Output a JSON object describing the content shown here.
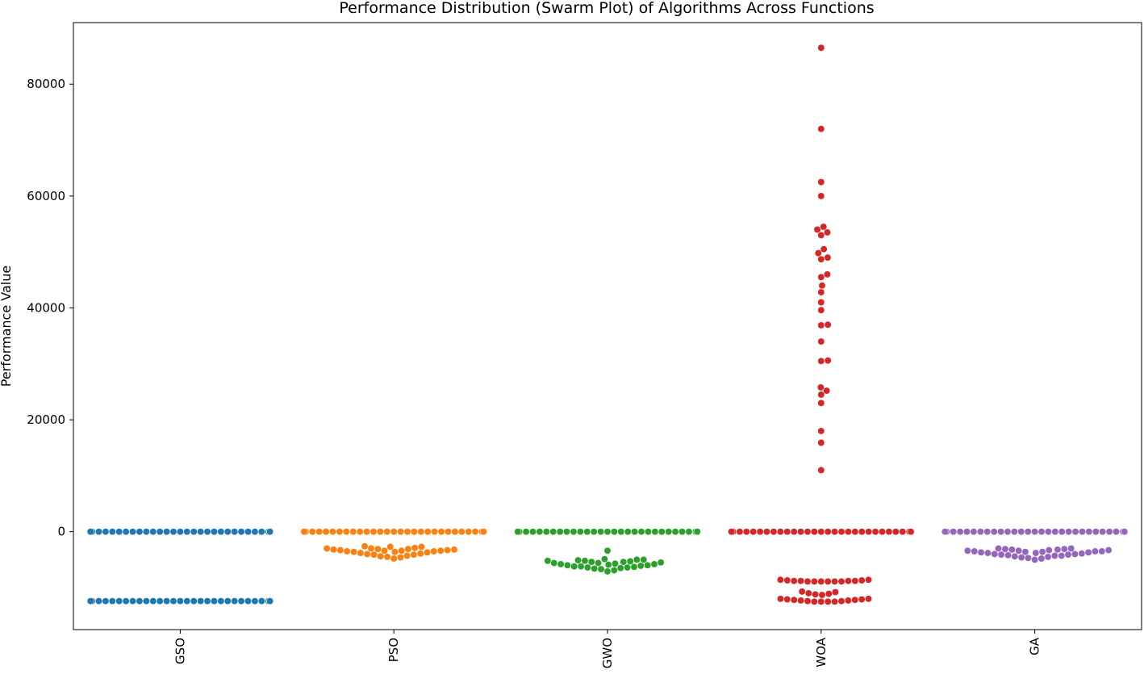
{
  "chart_data": {
    "type": "scatter",
    "subtype": "swarm",
    "title": "Performance Distribution (Swarm Plot) of Algorithms Across Functions",
    "xlabel": "",
    "ylabel": "Performance Value",
    "categories": [
      "GSO",
      "PSO",
      "GWO",
      "WOA",
      "GA"
    ],
    "ylim": [
      -17500,
      91000
    ],
    "yticks": [
      0,
      20000,
      40000,
      60000,
      80000
    ],
    "ytick_labels": [
      "0",
      "20000",
      "40000",
      "60000",
      "80000"
    ],
    "xtick_rotation": 90,
    "grid": false,
    "legend": "none",
    "colors": [
      "#1f77b4",
      "#ff7f0e",
      "#2ca02c",
      "#d62728",
      "#9467bd"
    ],
    "series": [
      {
        "values": [
          0,
          0,
          0,
          0,
          0,
          0,
          0,
          0,
          0,
          0,
          0,
          0,
          0,
          0,
          0,
          0,
          0,
          0,
          0,
          0,
          0,
          0,
          0,
          0,
          0,
          0,
          0,
          0,
          0,
          0,
          0,
          0,
          0,
          0,
          0,
          0,
          0,
          0,
          0,
          0,
          0,
          0,
          0,
          0,
          0,
          0,
          0,
          0,
          0,
          0,
          0,
          0,
          0,
          0,
          0,
          0,
          0,
          0,
          0,
          0,
          -12400,
          -12400,
          -12400,
          -12400,
          -12400,
          -12400,
          -12400,
          -12400,
          -12400,
          -12400,
          -12400,
          -12400,
          -12400,
          -12400,
          -12400,
          -12400,
          -12400,
          -12400,
          -12400,
          -12400,
          -12400,
          -12400,
          -12400,
          -12400,
          -12400,
          -12400,
          -12400,
          -12400,
          -12400,
          -12400,
          -12400,
          -12400,
          -12400,
          -12400,
          -12400,
          -12400,
          -12400,
          -12400,
          -12400,
          -12400
        ]
      },
      {
        "values": [
          0,
          0,
          0,
          0,
          0,
          0,
          0,
          0,
          0,
          0,
          0,
          0,
          0,
          0,
          0,
          0,
          0,
          0,
          0,
          0,
          0,
          0,
          0,
          0,
          0,
          0,
          0,
          0,
          0,
          0,
          0,
          0,
          0,
          0,
          0,
          0,
          0,
          0,
          0,
          0,
          0,
          0,
          0,
          0,
          0,
          0,
          0,
          0,
          0,
          0,
          0,
          0,
          0,
          0,
          0,
          0,
          0,
          0,
          0,
          0,
          0,
          0,
          0,
          0,
          0,
          0,
          0,
          0,
          0,
          0,
          -2900,
          -3000,
          -3100,
          -3200,
          -3300,
          -3400,
          -3400,
          -3500,
          -3500,
          -3600,
          -3700,
          -3800,
          -3900,
          -4000,
          -4100,
          -4300,
          -4500,
          -4800,
          -3400,
          -3200,
          -3100,
          -3000,
          -2700,
          -2600,
          -2700,
          -3300,
          -3600,
          -4100,
          -4400,
          -4600
        ]
      },
      {
        "values": [
          0,
          0,
          0,
          0,
          0,
          0,
          0,
          0,
          0,
          0,
          0,
          0,
          0,
          0,
          0,
          0,
          0,
          0,
          0,
          0,
          0,
          0,
          0,
          0,
          0,
          0,
          0,
          0,
          0,
          0,
          0,
          0,
          0,
          0,
          0,
          0,
          0,
          0,
          0,
          0,
          0,
          0,
          0,
          0,
          0,
          0,
          0,
          0,
          0,
          0,
          0,
          0,
          0,
          0,
          0,
          0,
          0,
          0,
          0,
          0,
          0,
          0,
          0,
          0,
          0,
          0,
          0,
          0,
          0,
          0,
          -3400,
          -4900,
          -5000,
          -5100,
          -5200,
          -5300,
          -5400,
          -5500,
          -5600,
          -5700,
          -5800,
          -5900,
          -6000,
          -6100,
          -6200,
          -6300,
          -6400,
          -6500,
          -6700,
          -6900,
          -7100,
          -5200,
          -5600,
          -6000,
          -6400,
          -5400,
          -5800,
          -6200,
          -6600,
          -5000
        ]
      },
      {
        "values": [
          86500,
          72000,
          62500,
          60000,
          54500,
          54000,
          53500,
          53000,
          50500,
          49800,
          49000,
          48700,
          46000,
          45500,
          44000,
          42800,
          41000,
          39600,
          37000,
          36900,
          34000,
          30600,
          30500,
          25800,
          25200,
          24500,
          23000,
          18000,
          15900,
          11000,
          0,
          0,
          0,
          0,
          0,
          0,
          0,
          0,
          0,
          0,
          0,
          0,
          0,
          0,
          0,
          0,
          0,
          0,
          0,
          0,
          0,
          0,
          0,
          0,
          0,
          0,
          0,
          0,
          0,
          0,
          0,
          0,
          0,
          0,
          0,
          0,
          0,
          0,
          0,
          0,
          0,
          0,
          0,
          0,
          0,
          0,
          0,
          0,
          0,
          0,
          0,
          0,
          0,
          0,
          0,
          0,
          0,
          0,
          0,
          0,
          -8600,
          -8700,
          -8800,
          -8800,
          -8900,
          -8900,
          -8900,
          -8900,
          -8900,
          -8900,
          -8800,
          -8800,
          -8700,
          -8600,
          -10700,
          -11000,
          -11200,
          -11300,
          -11100,
          -10800,
          -12000,
          -12100,
          -12200,
          -12300,
          -12400,
          -12500,
          -12500,
          -12500,
          -12500,
          -12400,
          -12300,
          -12200,
          -12100,
          -12000
        ]
      },
      {
        "values": [
          0,
          0,
          0,
          0,
          0,
          0,
          0,
          0,
          0,
          0,
          0,
          0,
          0,
          0,
          0,
          0,
          0,
          0,
          0,
          0,
          0,
          0,
          0,
          0,
          0,
          0,
          0,
          0,
          0,
          0,
          0,
          0,
          0,
          0,
          0,
          0,
          0,
          0,
          0,
          0,
          0,
          0,
          0,
          0,
          0,
          0,
          0,
          0,
          0,
          0,
          0,
          0,
          0,
          0,
          0,
          0,
          0,
          0,
          0,
          0,
          0,
          0,
          0,
          0,
          0,
          0,
          0,
          0,
          0,
          0,
          -3300,
          -3400,
          -3500,
          -3500,
          -3600,
          -3600,
          -3700,
          -3800,
          -3900,
          -4000,
          -4100,
          -4200,
          -4300,
          -4400,
          -4600,
          -4800,
          -5000,
          -4500,
          -4100,
          -3800,
          -3500,
          -3300,
          -3200,
          -3100,
          -3000,
          -3000,
          -3100,
          -3200,
          -3400,
          -3700,
          -4000,
          -4300,
          -4700
        ]
      }
    ]
  }
}
